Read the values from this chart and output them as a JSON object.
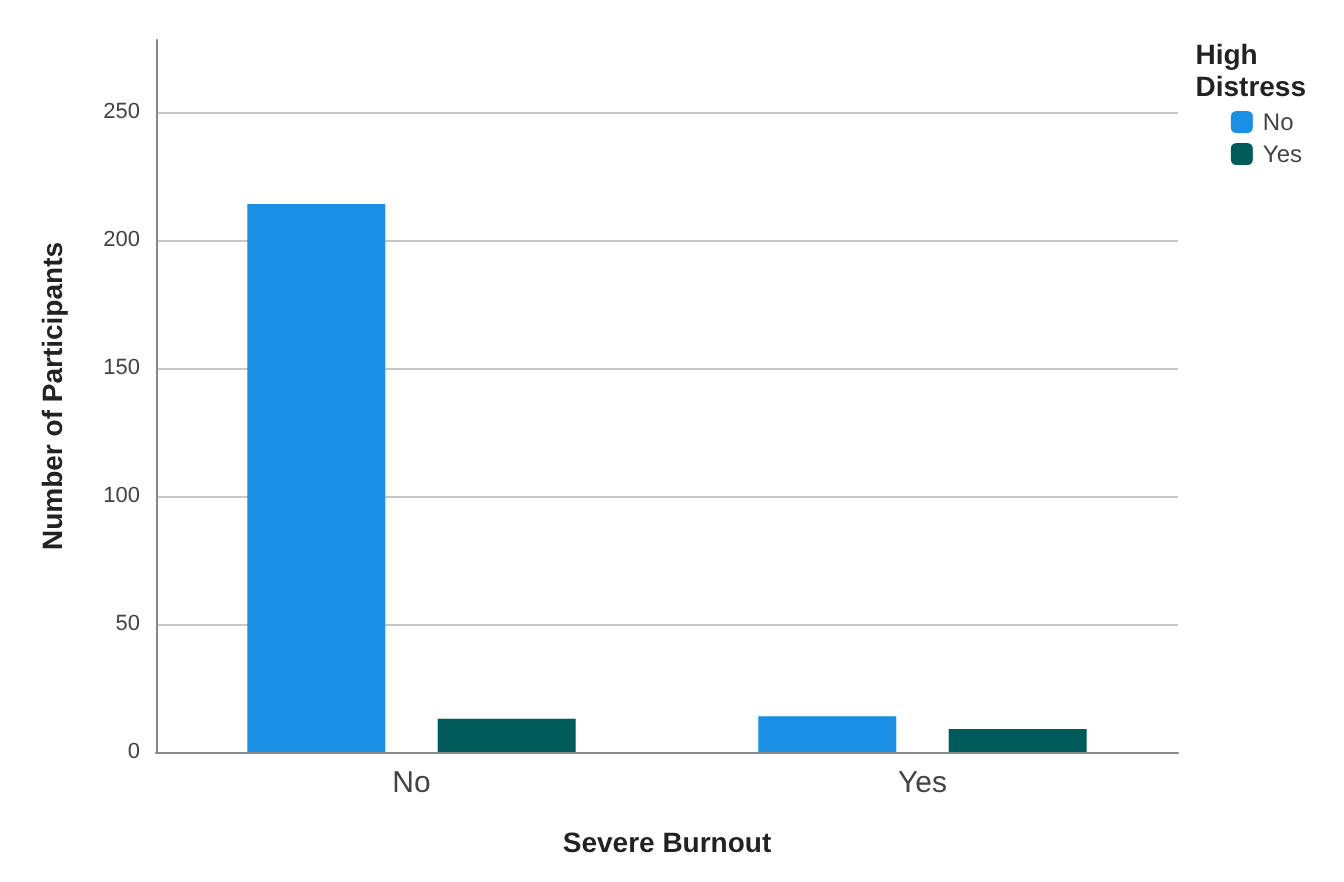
{
  "chart_data": {
    "type": "bar",
    "xlabel": "Severe Burnout",
    "ylabel": "Number of Participants",
    "legend_title": "High Distress",
    "categories": [
      "No",
      "Yes"
    ],
    "series": [
      {
        "name": "No",
        "color": "#1a8fe3",
        "values": [
          214,
          14
        ]
      },
      {
        "name": "Yes",
        "color": "#005b5b",
        "values": [
          13,
          9
        ]
      }
    ],
    "ylim": [
      0,
      278
    ],
    "yticks": [
      0,
      50,
      100,
      150,
      200,
      250
    ],
    "grid": "y",
    "legend": "top right"
  }
}
